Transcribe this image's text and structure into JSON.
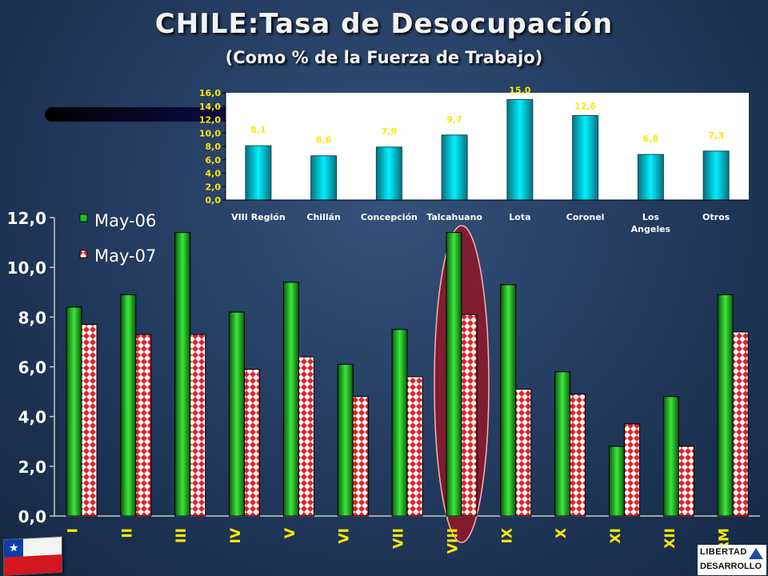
{
  "title": "CHILE:Tasa de Desocupación",
  "subtitle": "(Como % de la Fuerza de Trabajo)",
  "logo": {
    "line1": "LIBERTAD",
    "line2": "DESARROLLO"
  },
  "flag_star": "★",
  "chart_data": [
    {
      "type": "bar",
      "categories": [
        "VIII Región",
        "Chillán",
        "Concepción",
        "Talcahuano",
        "Lota",
        "Coronel",
        "Los Angeles",
        "Otros"
      ],
      "values": [
        8.1,
        6.6,
        7.9,
        9.7,
        15.0,
        12.6,
        6.8,
        7.3
      ],
      "data_labels": [
        "8,1",
        "6,6",
        "7,9",
        "9,7",
        "15,0",
        "12,6",
        "6,8",
        "7,3"
      ],
      "ylim": [
        0,
        16
      ],
      "y_ticks": [
        "0,0",
        "2,0",
        "4,0",
        "6,0",
        "8,0",
        "10,0",
        "12,0",
        "14,0",
        "16,0"
      ],
      "grid": false,
      "colors": {
        "bar": "#00c8d8",
        "bar_edge": "#0e4a55",
        "label": "#ffe600",
        "axis_text": "#ffffff"
      }
    },
    {
      "type": "bar",
      "categories": [
        "I",
        "II",
        "III",
        "IV",
        "V",
        "VI",
        "VII",
        "VIII",
        "IX",
        "X",
        "XI",
        "XII",
        "RM"
      ],
      "series": [
        {
          "name": "May-06",
          "values": [
            8.4,
            8.9,
            11.4,
            8.2,
            9.4,
            6.1,
            7.5,
            11.4,
            9.3,
            5.8,
            2.8,
            4.8,
            8.9
          ]
        },
        {
          "name": "May-07",
          "values": [
            7.7,
            7.3,
            7.3,
            5.9,
            6.4,
            4.8,
            5.6,
            8.1,
            5.1,
            4.9,
            3.7,
            2.8,
            7.4
          ]
        }
      ],
      "ylim": [
        0,
        12
      ],
      "y_ticks": [
        "0,0",
        "2,0",
        "4,0",
        "6,0",
        "8,0",
        "10,0",
        "12,0"
      ],
      "grid": false,
      "legend_position": "top-left",
      "highlight_category": "VIII",
      "colors": {
        "series1": "#1cc41c",
        "series2": "#e2232a",
        "axis_text": "#ffffff",
        "category_text": "#ffe600",
        "highlight": "#8a1a2a"
      }
    }
  ]
}
